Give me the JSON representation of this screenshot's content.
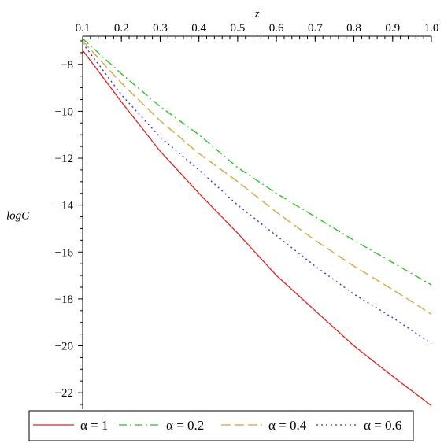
{
  "chart_data": {
    "type": "line",
    "title": "",
    "xlabel": "z",
    "ylabel": "logG",
    "xlim": [
      0.1,
      1.0
    ],
    "ylim": [
      -22.7,
      -6.8
    ],
    "x_axis_position": "top",
    "grid": false,
    "legend_position": "bottom",
    "x_ticks": [
      "0.1",
      "0.2",
      "0.3",
      "0.4",
      "0.5",
      "0.6",
      "0.7",
      "0.8",
      "0.9",
      "1.0"
    ],
    "y_ticks": [
      "-8",
      "-10",
      "-12",
      "-14",
      "-16",
      "-18",
      "-20",
      "-22"
    ],
    "series": [
      {
        "name": "α = 1",
        "color": "#e0201b",
        "dash": "solid",
        "x": [
          0.1,
          0.2,
          0.3,
          0.4,
          0.5,
          0.6,
          0.7,
          0.8,
          0.9,
          1.0
        ],
        "y": [
          -7.4,
          -9.6,
          -11.7,
          -13.5,
          -15.2,
          -17.0,
          -18.5,
          -20.0,
          -21.3,
          -22.55
        ]
      },
      {
        "name": "α = 0.2",
        "color": "#21c21a",
        "dash": "dashdot",
        "x": [
          0.1,
          0.2,
          0.3,
          0.4,
          0.5,
          0.6,
          0.7,
          0.8,
          0.9,
          1.0
        ],
        "y": [
          -6.9,
          -8.4,
          -9.8,
          -11.0,
          -12.4,
          -13.5,
          -14.5,
          -15.5,
          -16.45,
          -17.4
        ]
      },
      {
        "name": "α = 0.4",
        "color": "#d8a032",
        "dash": "longdash",
        "x": [
          0.1,
          0.2,
          0.3,
          0.4,
          0.5,
          0.6,
          0.7,
          0.8,
          0.9,
          1.0
        ],
        "y": [
          -7.0,
          -8.8,
          -10.4,
          -11.8,
          -13.0,
          -14.3,
          -15.5,
          -16.6,
          -17.6,
          -18.65
        ]
      },
      {
        "name": "α = 0.6",
        "color": "#2a2ad8",
        "dash": "dot",
        "x": [
          0.1,
          0.2,
          0.3,
          0.4,
          0.5,
          0.6,
          0.7,
          0.8,
          0.9,
          1.0
        ],
        "y": [
          -7.1,
          -9.3,
          -11.1,
          -12.5,
          -14.0,
          -15.3,
          -16.6,
          -17.8,
          -18.8,
          -19.9
        ]
      }
    ]
  }
}
